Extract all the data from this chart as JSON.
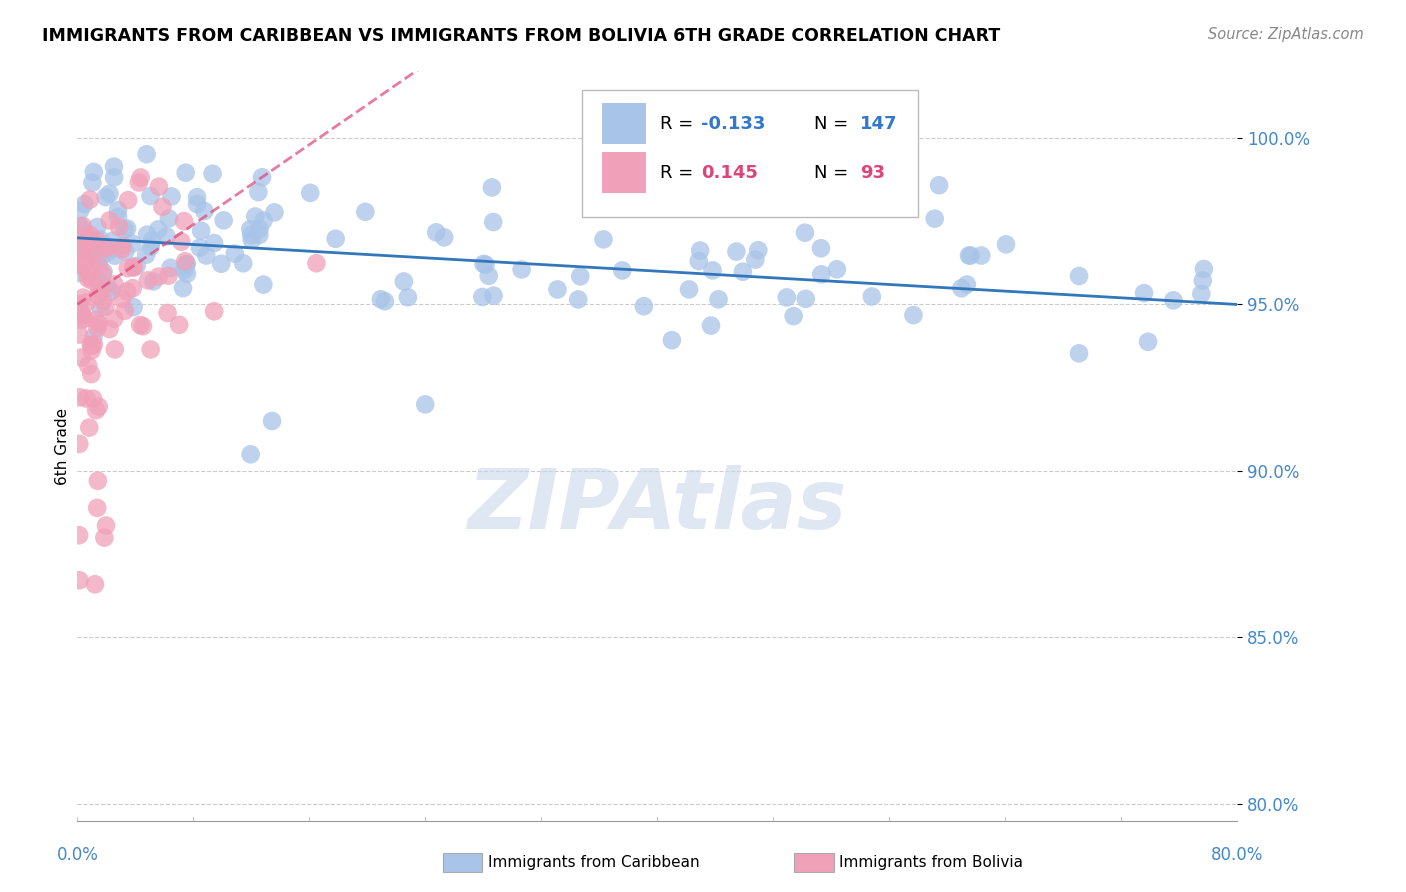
{
  "title": "IMMIGRANTS FROM CARIBBEAN VS IMMIGRANTS FROM BOLIVIA 6TH GRADE CORRELATION CHART",
  "source": "Source: ZipAtlas.com",
  "ylabel": "6th Grade",
  "y_ticks": [
    80.0,
    85.0,
    90.0,
    95.0,
    100.0
  ],
  "y_tick_labels": [
    "80.0%",
    "85.0%",
    "90.0%",
    "95.0%",
    "100.0%"
  ],
  "xlim": [
    0.0,
    80.0
  ],
  "ylim": [
    79.5,
    102.0
  ],
  "blue_R": -0.133,
  "blue_N": 147,
  "pink_R": 0.145,
  "pink_N": 93,
  "blue_color": "#a8c4e8",
  "pink_color": "#f0a0b8",
  "blue_line_color": "#3377bb",
  "pink_line_color": "#dd4477",
  "watermark": "ZIPAtlas",
  "watermark_color": "#c8d8ea",
  "legend_blue_label": "Immigrants from Caribbean",
  "legend_pink_label": "Immigrants from Bolivia"
}
